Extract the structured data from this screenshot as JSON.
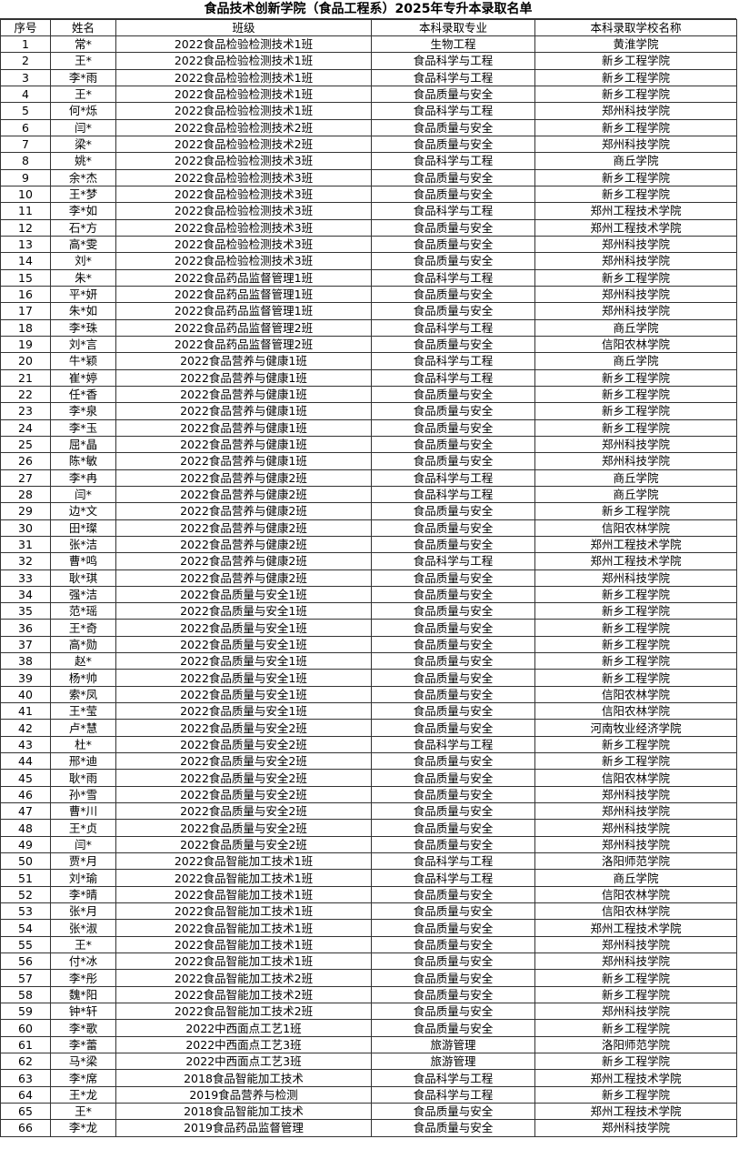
{
  "title": "食品技术创新学院（食品工程系）2025年专升本录取名单",
  "table": {
    "header": [
      "序号",
      "姓名",
      "班级",
      "本科录取专业",
      "本科录取学校名称"
    ],
    "rows": [
      [
        "1",
        "常*",
        "2022食品检验检测技术1班",
        "生物工程",
        "黄淮学院"
      ],
      [
        "2",
        "王*",
        "2022食品检验检测技术1班",
        "食品科学与工程",
        "新乡工程学院"
      ],
      [
        "3",
        "李*雨",
        "2022食品检验检测技术1班",
        "食品科学与工程",
        "新乡工程学院"
      ],
      [
        "4",
        "王*",
        "2022食品检验检测技术1班",
        "食品质量与安全",
        "新乡工程学院"
      ],
      [
        "5",
        "何*烁",
        "2022食品检验检测技术1班",
        "食品科学与工程",
        "郑州科技学院"
      ],
      [
        "6",
        "闫*",
        "2022食品检验检测技术2班",
        "食品质量与安全",
        "新乡工程学院"
      ],
      [
        "7",
        "梁*",
        "2022食品检验检测技术2班",
        "食品质量与安全",
        "郑州科技学院"
      ],
      [
        "8",
        "姚*",
        "2022食品检验检测技术3班",
        "食品科学与工程",
        "商丘学院"
      ],
      [
        "9",
        "余*杰",
        "2022食品检验检测技术3班",
        "食品质量与安全",
        "新乡工程学院"
      ],
      [
        "10",
        "王*梦",
        "2022食品检验检测技术3班",
        "食品质量与安全",
        "新乡工程学院"
      ],
      [
        "11",
        "李*如",
        "2022食品检验检测技术3班",
        "食品科学与工程",
        "郑州工程技术学院"
      ],
      [
        "12",
        "石*方",
        "2022食品检验检测技术3班",
        "食品质量与安全",
        "郑州工程技术学院"
      ],
      [
        "13",
        "高*雯",
        "2022食品检验检测技术3班",
        "食品质量与安全",
        "郑州科技学院"
      ],
      [
        "14",
        "刘*",
        "2022食品检验检测技术3班",
        "食品质量与安全",
        "郑州科技学院"
      ],
      [
        "15",
        "朱*",
        "2022食品药品监督管理1班",
        "食品科学与工程",
        "新乡工程学院"
      ],
      [
        "16",
        "平*妍",
        "2022食品药品监督管理1班",
        "食品质量与安全",
        "郑州科技学院"
      ],
      [
        "17",
        "朱*如",
        "2022食品药品监督管理1班",
        "食品质量与安全",
        "郑州科技学院"
      ],
      [
        "18",
        "李*珠",
        "2022食品药品监督管理2班",
        "食品科学与工程",
        "商丘学院"
      ],
      [
        "19",
        "刘*言",
        "2022食品药品监督管理2班",
        "食品质量与安全",
        "信阳农林学院"
      ],
      [
        "20",
        "牛*颖",
        "2022食品营养与健康1班",
        "食品科学与工程",
        "商丘学院"
      ],
      [
        "21",
        "崔*婷",
        "2022食品营养与健康1班",
        "食品科学与工程",
        "新乡工程学院"
      ],
      [
        "22",
        "任*香",
        "2022食品营养与健康1班",
        "食品质量与安全",
        "新乡工程学院"
      ],
      [
        "23",
        "李*泉",
        "2022食品营养与健康1班",
        "食品质量与安全",
        "新乡工程学院"
      ],
      [
        "24",
        "李*玉",
        "2022食品营养与健康1班",
        "食品质量与安全",
        "新乡工程学院"
      ],
      [
        "25",
        "屈*晶",
        "2022食品营养与健康1班",
        "食品质量与安全",
        "郑州科技学院"
      ],
      [
        "26",
        "陈*敏",
        "2022食品营养与健康1班",
        "食品质量与安全",
        "郑州科技学院"
      ],
      [
        "27",
        "李*冉",
        "2022食品营养与健康2班",
        "食品科学与工程",
        "商丘学院"
      ],
      [
        "28",
        "闫*",
        "2022食品营养与健康2班",
        "食品科学与工程",
        "商丘学院"
      ],
      [
        "29",
        "边*文",
        "2022食品营养与健康2班",
        "食品质量与安全",
        "新乡工程学院"
      ],
      [
        "30",
        "田*璨",
        "2022食品营养与健康2班",
        "食品质量与安全",
        "信阳农林学院"
      ],
      [
        "31",
        "张*洁",
        "2022食品营养与健康2班",
        "食品质量与安全",
        "郑州工程技术学院"
      ],
      [
        "32",
        "曹*鸣",
        "2022食品营养与健康2班",
        "食品科学与工程",
        "郑州工程技术学院"
      ],
      [
        "33",
        "耿*琪",
        "2022食品营养与健康2班",
        "食品质量与安全",
        "郑州科技学院"
      ],
      [
        "34",
        "强*洁",
        "2022食品质量与安全1班",
        "食品质量与安全",
        "新乡工程学院"
      ],
      [
        "35",
        "范*瑶",
        "2022食品质量与安全1班",
        "食品质量与安全",
        "新乡工程学院"
      ],
      [
        "36",
        "王*奇",
        "2022食品质量与安全1班",
        "食品质量与安全",
        "新乡工程学院"
      ],
      [
        "37",
        "高*勋",
        "2022食品质量与安全1班",
        "食品质量与安全",
        "新乡工程学院"
      ],
      [
        "38",
        "赵*",
        "2022食品质量与安全1班",
        "食品质量与安全",
        "新乡工程学院"
      ],
      [
        "39",
        "杨*帅",
        "2022食品质量与安全1班",
        "食品质量与安全",
        "新乡工程学院"
      ],
      [
        "40",
        "索*凤",
        "2022食品质量与安全1班",
        "食品质量与安全",
        "信阳农林学院"
      ],
      [
        "41",
        "王*莹",
        "2022食品质量与安全1班",
        "食品质量与安全",
        "信阳农林学院"
      ],
      [
        "42",
        "卢*慧",
        "2022食品质量与安全2班",
        "食品质量与安全",
        "河南牧业经济学院"
      ],
      [
        "43",
        "杜*",
        "2022食品质量与安全2班",
        "食品科学与工程",
        "新乡工程学院"
      ],
      [
        "44",
        "邢*迪",
        "2022食品质量与安全2班",
        "食品质量与安全",
        "新乡工程学院"
      ],
      [
        "45",
        "耿*雨",
        "2022食品质量与安全2班",
        "食品质量与安全",
        "信阳农林学院"
      ],
      [
        "46",
        "孙*雪",
        "2022食品质量与安全2班",
        "食品质量与安全",
        "郑州科技学院"
      ],
      [
        "47",
        "曹*川",
        "2022食品质量与安全2班",
        "食品质量与安全",
        "郑州科技学院"
      ],
      [
        "48",
        "王*贞",
        "2022食品质量与安全2班",
        "食品质量与安全",
        "郑州科技学院"
      ],
      [
        "49",
        "闫*",
        "2022食品质量与安全2班",
        "食品质量与安全",
        "郑州科技学院"
      ],
      [
        "50",
        "贾*月",
        "2022食品智能加工技术1班",
        "食品科学与工程",
        "洛阳师范学院"
      ],
      [
        "51",
        "刘*瑜",
        "2022食品智能加工技术1班",
        "食品科学与工程",
        "商丘学院"
      ],
      [
        "52",
        "李*晴",
        "2022食品智能加工技术1班",
        "食品质量与安全",
        "信阳农林学院"
      ],
      [
        "53",
        "张*月",
        "2022食品智能加工技术1班",
        "食品质量与安全",
        "信阳农林学院"
      ],
      [
        "54",
        "张*淑",
        "2022食品智能加工技术1班",
        "食品质量与安全",
        "郑州工程技术学院"
      ],
      [
        "55",
        "王*",
        "2022食品智能加工技术1班",
        "食品质量与安全",
        "郑州科技学院"
      ],
      [
        "56",
        "付*冰",
        "2022食品智能加工技术1班",
        "食品质量与安全",
        "郑州科技学院"
      ],
      [
        "57",
        "李*彤",
        "2022食品智能加工技术2班",
        "食品质量与安全",
        "新乡工程学院"
      ],
      [
        "58",
        "魏*阳",
        "2022食品智能加工技术2班",
        "食品质量与安全",
        "新乡工程学院"
      ],
      [
        "59",
        "钟*轩",
        "2022食品智能加工技术2班",
        "食品质量与安全",
        "郑州科技学院"
      ],
      [
        "60",
        "李*歌",
        "2022中西面点工艺1班",
        "食品质量与安全",
        "新乡工程学院"
      ],
      [
        "61",
        "李*蕾",
        "2022中西面点工艺3班",
        "旅游管理",
        "洛阳师范学院"
      ],
      [
        "62",
        "马*梁",
        "2022中西面点工艺3班",
        "旅游管理",
        "新乡工程学院"
      ],
      [
        "63",
        "李*席",
        "2018食品智能加工技术",
        "食品科学与工程",
        "郑州工程技术学院"
      ],
      [
        "64",
        "王*龙",
        "2019食品营养与检测",
        "食品科学与工程",
        "新乡工程学院"
      ],
      [
        "65",
        "王*",
        "2018食品智能加工技术",
        "食品质量与安全",
        "郑州工程技术学院"
      ],
      [
        "66",
        "李*龙",
        "2019食品药品监督管理",
        "食品质量与安全",
        "郑州科技学院"
      ]
    ]
  }
}
